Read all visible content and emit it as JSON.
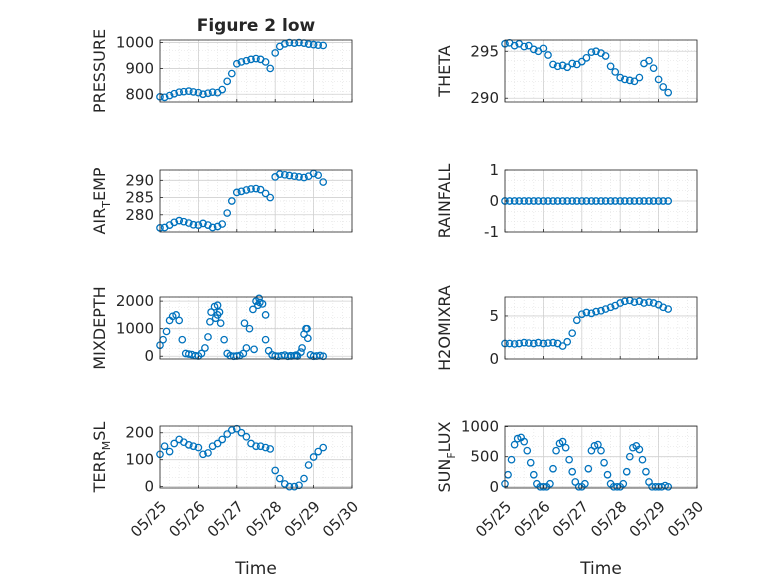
{
  "figure": {
    "title": "Figure 2 low",
    "marker_color": "#0072BD",
    "grid_color": "#d0d0d0"
  },
  "chart_data": [
    {
      "id": "pressure",
      "type": "scatter",
      "marker": "circle",
      "title": "Figure 2 low",
      "ylabel": "PRESSURE",
      "ylabel_main": "PRESSURE",
      "ylabel_sub": "",
      "ylabel_tail": "",
      "ylim": [
        770,
        1010
      ],
      "yticks": [
        800,
        900,
        1000
      ],
      "xlim": [
        0,
        5
      ],
      "xticks": [
        0,
        1,
        2,
        3,
        4,
        5
      ],
      "xtick_labels": [
        "05/25",
        "05/26",
        "05/27",
        "05/28",
        "05/29",
        "05/30"
      ],
      "xlabel": "",
      "x": [
        0.0,
        0.12,
        0.25,
        0.37,
        0.5,
        0.62,
        0.75,
        0.87,
        1.0,
        1.12,
        1.25,
        1.37,
        1.5,
        1.62,
        1.75,
        1.87,
        2.0,
        2.12,
        2.25,
        2.37,
        2.5,
        2.62,
        2.75,
        2.87,
        3.0,
        3.12,
        3.25,
        3.37,
        3.5,
        3.62,
        3.75,
        3.87,
        4.0,
        4.12,
        4.25
      ],
      "y": [
        790,
        788,
        795,
        802,
        808,
        810,
        812,
        809,
        806,
        800,
        804,
        808,
        806,
        818,
        850,
        880,
        918,
        925,
        930,
        935,
        938,
        935,
        925,
        900,
        960,
        985,
        995,
        1000,
        998,
        1000,
        998,
        994,
        992,
        990,
        989
      ]
    },
    {
      "id": "theta",
      "type": "scatter",
      "marker": "circle",
      "ylabel": "THETA",
      "ylabel_main": "THETA",
      "ylabel_sub": "",
      "ylabel_tail": "",
      "ylim": [
        289.6,
        296.2
      ],
      "yticks": [
        290,
        295
      ],
      "xlim": [
        0,
        5
      ],
      "xticks": [
        0,
        1,
        2,
        3,
        4,
        5
      ],
      "xtick_labels": [
        "05/25",
        "05/26",
        "05/27",
        "05/28",
        "05/29",
        "05/30"
      ],
      "xlabel": "",
      "x": [
        0.0,
        0.12,
        0.25,
        0.37,
        0.5,
        0.62,
        0.75,
        0.87,
        1.0,
        1.12,
        1.25,
        1.37,
        1.5,
        1.62,
        1.75,
        1.87,
        2.0,
        2.12,
        2.25,
        2.37,
        2.5,
        2.62,
        2.75,
        2.87,
        3.0,
        3.12,
        3.25,
        3.37,
        3.5,
        3.62,
        3.75,
        3.87,
        4.0,
        4.12,
        4.25
      ],
      "y": [
        295.8,
        295.9,
        295.6,
        295.8,
        295.5,
        295.6,
        295.2,
        295.0,
        295.3,
        294.6,
        293.6,
        293.4,
        293.5,
        293.3,
        293.7,
        293.6,
        293.9,
        294.3,
        294.9,
        295.0,
        294.8,
        294.5,
        293.4,
        292.8,
        292.2,
        292.0,
        291.9,
        291.8,
        292.2,
        293.7,
        294.0,
        293.2,
        292.0,
        291.2,
        290.6
      ]
    },
    {
      "id": "air_temp",
      "type": "scatter",
      "marker": "circle",
      "ylabel": "AIR_TEMP",
      "ylabel_main": "AIR",
      "ylabel_sub": "T",
      "ylabel_tail": "EMP",
      "ylim": [
        275,
        293
      ],
      "yticks": [
        280,
        285,
        290
      ],
      "xlim": [
        0,
        5
      ],
      "xticks": [
        0,
        1,
        2,
        3,
        4,
        5
      ],
      "xtick_labels": [
        "05/25",
        "05/26",
        "05/27",
        "05/28",
        "05/29",
        "05/30"
      ],
      "xlabel": "",
      "x": [
        0.0,
        0.12,
        0.25,
        0.37,
        0.5,
        0.62,
        0.75,
        0.87,
        1.0,
        1.12,
        1.25,
        1.37,
        1.5,
        1.62,
        1.75,
        1.87,
        2.0,
        2.12,
        2.25,
        2.37,
        2.5,
        2.62,
        2.75,
        2.87,
        3.0,
        3.12,
        3.25,
        3.37,
        3.5,
        3.62,
        3.75,
        3.87,
        4.0,
        4.12,
        4.25
      ],
      "y": [
        276.2,
        276.3,
        277.0,
        277.8,
        278.3,
        278.0,
        277.6,
        277.1,
        277.0,
        277.5,
        277.0,
        276.3,
        276.6,
        277.3,
        280.5,
        284.0,
        286.5,
        286.8,
        287.2,
        287.5,
        287.6,
        287.3,
        286.2,
        285.0,
        291.0,
        291.8,
        291.6,
        291.4,
        291.2,
        291.0,
        290.8,
        291.2,
        292.0,
        291.5,
        289.5
      ]
    },
    {
      "id": "rainfall",
      "type": "scatter",
      "marker": "circle",
      "ylabel": "RAINFALL",
      "ylabel_main": "RAINFALL",
      "ylabel_sub": "",
      "ylabel_tail": "",
      "ylim": [
        -1,
        1
      ],
      "yticks": [
        -1,
        0,
        1
      ],
      "xlim": [
        0,
        5
      ],
      "xticks": [
        0,
        1,
        2,
        3,
        4,
        5
      ],
      "xtick_labels": [
        "05/25",
        "05/26",
        "05/27",
        "05/28",
        "05/29",
        "05/30"
      ],
      "xlabel": "",
      "x": [
        0.0,
        0.12,
        0.25,
        0.37,
        0.5,
        0.62,
        0.75,
        0.87,
        1.0,
        1.12,
        1.25,
        1.37,
        1.5,
        1.62,
        1.75,
        1.87,
        2.0,
        2.12,
        2.25,
        2.37,
        2.5,
        2.62,
        2.75,
        2.87,
        3.0,
        3.12,
        3.25,
        3.37,
        3.5,
        3.62,
        3.75,
        3.87,
        4.0,
        4.12,
        4.25
      ],
      "y": [
        0,
        0,
        0,
        0,
        0,
        0,
        0,
        0,
        0,
        0,
        0,
        0,
        0,
        0,
        0,
        0,
        0,
        0,
        0,
        0,
        0,
        0,
        0,
        0,
        0,
        0,
        0,
        0,
        0,
        0,
        0,
        0,
        0,
        0,
        0
      ]
    },
    {
      "id": "mixdepth",
      "type": "scatter",
      "marker": "circle",
      "ylabel": "MIXDEPTH",
      "ylabel_main": "MIXDEPTH",
      "ylabel_sub": "",
      "ylabel_tail": "",
      "ylim": [
        -100,
        2150
      ],
      "yticks": [
        0,
        1000,
        2000
      ],
      "xlim": [
        0,
        5
      ],
      "xticks": [
        0,
        1,
        2,
        3,
        4,
        5
      ],
      "xtick_labels": [
        "05/25",
        "05/26",
        "05/27",
        "05/28",
        "05/29",
        "05/30"
      ],
      "xlabel": "",
      "x": [
        0.0,
        0.08,
        0.17,
        0.25,
        0.33,
        0.42,
        0.5,
        0.58,
        0.67,
        0.75,
        0.83,
        0.92,
        1.0,
        1.08,
        1.17,
        1.25,
        1.33,
        1.42,
        1.5,
        1.58,
        1.67,
        1.75,
        1.83,
        1.92,
        2.0,
        2.08,
        2.17,
        2.25,
        2.33,
        2.42,
        2.5,
        2.58,
        2.67,
        2.75,
        2.83,
        2.92,
        3.0,
        3.08,
        3.17,
        3.25,
        3.33,
        3.42,
        3.5,
        3.58,
        3.67,
        3.75,
        3.83,
        3.92,
        4.0,
        4.08,
        4.17,
        4.25
      ],
      "y": [
        400,
        600,
        900,
        1300,
        1450,
        1500,
        1300,
        600,
        100,
        80,
        60,
        20,
        10,
        100,
        300,
        700,
        1600,
        1800,
        1850,
        1200,
        600,
        100,
        20,
        0,
        10,
        30,
        100,
        300,
        1000,
        1700,
        2000,
        2100,
        1900,
        600,
        200,
        50,
        10,
        0,
        20,
        40,
        0,
        10,
        20,
        10,
        150,
        800,
        1000,
        50,
        0,
        10,
        30,
        0
      ],
      "comment_extra_visible_points_x": [
        1.3,
        1.45,
        1.5,
        1.55,
        2.2,
        2.55,
        2.6,
        2.75,
        3.7,
        3.8,
        3.85,
        2.45,
        3.4,
        3.55
      ],
      "comment_extra_visible_points_y": [
        1250,
        1380,
        1500,
        1600,
        1200,
        1850,
        1950,
        1500,
        300,
        1000,
        650,
        250,
        20,
        40
      ]
    },
    {
      "id": "h2omixra",
      "type": "scatter",
      "marker": "circle",
      "ylabel": "H2OMIXRA",
      "ylabel_main": "H2OMIXRA",
      "ylabel_sub": "",
      "ylabel_tail": "",
      "ylim": [
        0,
        7.2
      ],
      "yticks": [
        0,
        5
      ],
      "xlim": [
        0,
        5
      ],
      "xticks": [
        0,
        1,
        2,
        3,
        4,
        5
      ],
      "xtick_labels": [
        "05/25",
        "05/26",
        "05/27",
        "05/28",
        "05/29",
        "05/30"
      ],
      "xlabel": "",
      "x": [
        0.0,
        0.12,
        0.25,
        0.37,
        0.5,
        0.62,
        0.75,
        0.87,
        1.0,
        1.12,
        1.25,
        1.37,
        1.5,
        1.62,
        1.75,
        1.87,
        2.0,
        2.12,
        2.25,
        2.37,
        2.5,
        2.62,
        2.75,
        2.87,
        3.0,
        3.12,
        3.25,
        3.37,
        3.5,
        3.62,
        3.75,
        3.87,
        4.0,
        4.12,
        4.25
      ],
      "y": [
        1.8,
        1.8,
        1.75,
        1.8,
        1.9,
        1.85,
        1.8,
        1.9,
        1.8,
        1.85,
        1.9,
        1.8,
        1.5,
        2.0,
        3.0,
        4.5,
        5.2,
        5.4,
        5.3,
        5.5,
        5.6,
        5.8,
        6.0,
        6.2,
        6.5,
        6.7,
        6.8,
        6.6,
        6.7,
        6.5,
        6.6,
        6.5,
        6.3,
        6.0,
        5.8
      ]
    },
    {
      "id": "terr_msl",
      "type": "scatter",
      "marker": "circle",
      "ylabel": "TERR_MSL",
      "ylabel_main": "TERR",
      "ylabel_sub": "M",
      "ylabel_tail": "SL",
      "ylim": [
        -5,
        225
      ],
      "yticks": [
        0,
        100,
        200
      ],
      "xlim": [
        0,
        5
      ],
      "xticks": [
        0,
        1,
        2,
        3,
        4,
        5
      ],
      "xtick_labels": [
        "05/25",
        "05/26",
        "05/27",
        "05/28",
        "05/29",
        "05/30"
      ],
      "xlabel": "Time",
      "x": [
        0.0,
        0.12,
        0.25,
        0.37,
        0.5,
        0.62,
        0.75,
        0.87,
        1.0,
        1.12,
        1.25,
        1.37,
        1.5,
        1.62,
        1.75,
        1.87,
        2.0,
        2.12,
        2.25,
        2.37,
        2.5,
        2.62,
        2.75,
        2.87,
        3.0,
        3.12,
        3.25,
        3.37,
        3.5,
        3.62,
        3.75,
        3.87,
        4.0,
        4.12,
        4.25
      ],
      "y": [
        120,
        150,
        130,
        160,
        175,
        165,
        155,
        150,
        145,
        120,
        125,
        150,
        160,
        175,
        195,
        210,
        215,
        200,
        185,
        160,
        150,
        150,
        145,
        140,
        60,
        30,
        10,
        0,
        0,
        5,
        30,
        80,
        110,
        130,
        145
      ]
    },
    {
      "id": "sun_flux",
      "type": "scatter",
      "marker": "circle",
      "ylabel": "SUN_FLUX",
      "ylabel_main": "SUN",
      "ylabel_sub": "F",
      "ylabel_tail": "LUX",
      "ylim": [
        -20,
        1010
      ],
      "yticks": [
        0,
        500,
        1000
      ],
      "xlim": [
        0,
        5
      ],
      "xticks": [
        0,
        1,
        2,
        3,
        4,
        5
      ],
      "xtick_labels": [
        "05/25",
        "05/26",
        "05/27",
        "05/28",
        "05/29",
        "05/30"
      ],
      "xlabel": "Time",
      "x": [
        0.0,
        0.08,
        0.17,
        0.25,
        0.33,
        0.42,
        0.5,
        0.58,
        0.67,
        0.75,
        0.83,
        0.92,
        1.0,
        1.08,
        1.17,
        1.25,
        1.33,
        1.42,
        1.5,
        1.58,
        1.67,
        1.75,
        1.83,
        1.92,
        2.0,
        2.08,
        2.17,
        2.25,
        2.33,
        2.42,
        2.5,
        2.58,
        2.67,
        2.75,
        2.83,
        2.92,
        3.0,
        3.08,
        3.17,
        3.25,
        3.33,
        3.42,
        3.5,
        3.58,
        3.67,
        3.75,
        3.83,
        3.92,
        4.0,
        4.08,
        4.17,
        4.25
      ],
      "y": [
        50,
        200,
        450,
        700,
        800,
        820,
        750,
        600,
        400,
        200,
        50,
        0,
        0,
        0,
        50,
        300,
        600,
        720,
        750,
        650,
        450,
        250,
        80,
        0,
        0,
        50,
        300,
        600,
        680,
        700,
        600,
        400,
        200,
        50,
        0,
        0,
        0,
        50,
        250,
        500,
        650,
        680,
        620,
        450,
        250,
        80,
        0,
        0,
        0,
        0,
        20,
        0
      ]
    }
  ]
}
